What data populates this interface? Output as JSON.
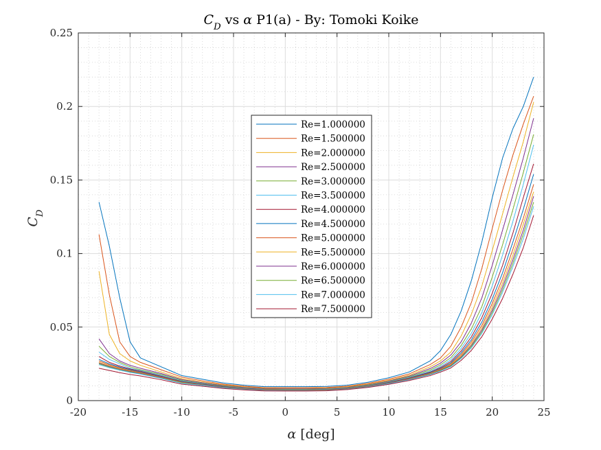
{
  "chart_data": {
    "type": "line",
    "title": "C_D vs α P1(a) - By: Tomoki Koike",
    "xlabel": "α [deg]",
    "ylabel": "C_D",
    "xlim": [
      -20,
      25
    ],
    "ylim": [
      0,
      0.25
    ],
    "xticks": [
      "-20",
      "-15",
      "-10",
      "-5",
      "0",
      "5",
      "10",
      "15",
      "20",
      "25"
    ],
    "yticks": [
      "0",
      "0.05",
      "0.1",
      "0.15",
      "0.2",
      "0.25"
    ],
    "grid": true,
    "minor_grid": true,
    "legend_position": "center",
    "series": [
      {
        "name": "Re=1.000000",
        "color": "#0072BD",
        "x": [
          -18,
          -17,
          -16,
          -15,
          -14,
          -12,
          -10,
          -8,
          -6,
          -4,
          -2,
          0,
          2,
          4,
          6,
          8,
          10,
          12,
          14,
          15,
          16,
          17,
          18,
          19,
          20,
          21,
          22,
          23,
          24
        ],
        "values": [
          0.135,
          0.105,
          0.07,
          0.04,
          0.029,
          0.023,
          0.017,
          0.0145,
          0.012,
          0.0105,
          0.0095,
          0.0095,
          0.0095,
          0.0097,
          0.0105,
          0.0125,
          0.0155,
          0.0195,
          0.027,
          0.034,
          0.045,
          0.061,
          0.082,
          0.108,
          0.138,
          0.165,
          0.185,
          0.2,
          0.22
        ]
      },
      {
        "name": "Re=1.500000",
        "color": "#D95319",
        "x": [
          -18,
          -17,
          -16,
          -15,
          -14,
          -12,
          -10,
          -8,
          -6,
          -4,
          -2,
          0,
          2,
          4,
          6,
          8,
          10,
          12,
          14,
          15,
          16,
          17,
          18,
          19,
          20,
          21,
          22,
          23,
          24
        ],
        "values": [
          0.113,
          0.072,
          0.04,
          0.03,
          0.026,
          0.021,
          0.016,
          0.0135,
          0.0112,
          0.0098,
          0.0088,
          0.0088,
          0.0088,
          0.009,
          0.0098,
          0.0117,
          0.0145,
          0.0182,
          0.0245,
          0.029,
          0.037,
          0.05,
          0.067,
          0.09,
          0.117,
          0.143,
          0.167,
          0.188,
          0.207
        ]
      },
      {
        "name": "Re=2.000000",
        "color": "#EDB120",
        "x": [
          -18,
          -17,
          -16,
          -15,
          -14,
          -12,
          -10,
          -8,
          -6,
          -4,
          -2,
          0,
          2,
          4,
          6,
          8,
          10,
          12,
          14,
          15,
          16,
          17,
          18,
          19,
          20,
          21,
          22,
          23,
          24
        ],
        "values": [
          0.088,
          0.045,
          0.032,
          0.027,
          0.024,
          0.0195,
          0.015,
          0.0128,
          0.0107,
          0.0093,
          0.0084,
          0.0083,
          0.0083,
          0.0085,
          0.0094,
          0.0112,
          0.0138,
          0.0173,
          0.023,
          0.027,
          0.033,
          0.044,
          0.059,
          0.078,
          0.102,
          0.127,
          0.152,
          0.176,
          0.203
        ]
      },
      {
        "name": "Re=2.500000",
        "color": "#7E2F8E",
        "x": [
          -18,
          -17,
          -16,
          -15,
          -14,
          -12,
          -10,
          -8,
          -6,
          -4,
          -2,
          0,
          2,
          4,
          6,
          8,
          10,
          12,
          14,
          15,
          16,
          17,
          18,
          19,
          20,
          21,
          22,
          23,
          24
        ],
        "values": [
          0.042,
          0.032,
          0.027,
          0.024,
          0.022,
          0.0185,
          0.0143,
          0.0122,
          0.0103,
          0.009,
          0.0081,
          0.008,
          0.008,
          0.0082,
          0.009,
          0.0108,
          0.0133,
          0.0167,
          0.0218,
          0.0255,
          0.031,
          0.04,
          0.053,
          0.07,
          0.092,
          0.116,
          0.14,
          0.165,
          0.192
        ]
      },
      {
        "name": "Re=3.000000",
        "color": "#77AC30",
        "x": [
          -18,
          -17,
          -16,
          -15,
          -14,
          -12,
          -10,
          -8,
          -6,
          -4,
          -2,
          0,
          2,
          4,
          6,
          8,
          10,
          12,
          14,
          15,
          16,
          17,
          18,
          19,
          20,
          21,
          22,
          23,
          24
        ],
        "values": [
          0.037,
          0.03,
          0.026,
          0.023,
          0.021,
          0.0178,
          0.0138,
          0.0118,
          0.01,
          0.0087,
          0.0078,
          0.0077,
          0.0077,
          0.0079,
          0.0087,
          0.0105,
          0.0129,
          0.0162,
          0.0208,
          0.0243,
          0.0292,
          0.0375,
          0.049,
          0.064,
          0.084,
          0.106,
          0.13,
          0.155,
          0.181
        ]
      },
      {
        "name": "Re=3.500000",
        "color": "#4DBEEE",
        "x": [
          -18,
          -17,
          -16,
          -15,
          -14,
          -12,
          -10,
          -8,
          -6,
          -4,
          -2,
          0,
          2,
          4,
          6,
          8,
          10,
          12,
          14,
          15,
          16,
          17,
          18,
          19,
          20,
          21,
          22,
          23,
          24
        ],
        "values": [
          0.033,
          0.028,
          0.025,
          0.022,
          0.0205,
          0.0172,
          0.0134,
          0.0115,
          0.0097,
          0.0085,
          0.0076,
          0.0075,
          0.0075,
          0.0077,
          0.0085,
          0.0102,
          0.0126,
          0.0158,
          0.02,
          0.0233,
          0.0278,
          0.0355,
          0.046,
          0.06,
          0.078,
          0.099,
          0.122,
          0.147,
          0.174
        ]
      },
      {
        "name": "Re=4.000000",
        "color": "#A2142F",
        "x": [
          -18,
          -17,
          -16,
          -15,
          -14,
          -12,
          -10,
          -8,
          -6,
          -4,
          -2,
          0,
          2,
          4,
          6,
          8,
          10,
          12,
          14,
          15,
          16,
          17,
          18,
          19,
          20,
          21,
          22,
          23,
          24
        ],
        "values": [
          0.03,
          0.026,
          0.0235,
          0.0215,
          0.02,
          0.0167,
          0.013,
          0.0112,
          0.0095,
          0.0083,
          0.0074,
          0.0073,
          0.0073,
          0.0075,
          0.0083,
          0.01,
          0.0123,
          0.0154,
          0.0194,
          0.0225,
          0.0266,
          0.0338,
          0.0435,
          0.0565,
          0.073,
          0.092,
          0.114,
          0.138,
          0.161
        ]
      },
      {
        "name": "Re=4.500000",
        "color": "#0072BD",
        "x": [
          -18,
          -17,
          -16,
          -15,
          -14,
          -12,
          -10,
          -8,
          -6,
          -4,
          -2,
          0,
          2,
          4,
          6,
          8,
          10,
          12,
          14,
          15,
          16,
          17,
          18,
          19,
          20,
          21,
          22,
          23,
          24
        ],
        "values": [
          0.028,
          0.025,
          0.0228,
          0.021,
          0.0195,
          0.0163,
          0.0127,
          0.011,
          0.0093,
          0.0081,
          0.0073,
          0.0072,
          0.0072,
          0.0074,
          0.0082,
          0.0098,
          0.0121,
          0.0151,
          0.019,
          0.0219,
          0.0257,
          0.0325,
          0.0415,
          0.0535,
          0.069,
          0.087,
          0.108,
          0.13,
          0.154
        ]
      },
      {
        "name": "Re=5.000000",
        "color": "#D95319",
        "x": [
          -18,
          -17,
          -16,
          -15,
          -14,
          -12,
          -10,
          -8,
          -6,
          -4,
          -2,
          0,
          2,
          4,
          6,
          8,
          10,
          12,
          14,
          15,
          16,
          17,
          18,
          19,
          20,
          21,
          22,
          23,
          24
        ],
        "values": [
          0.027,
          0.0243,
          0.0222,
          0.0205,
          0.0191,
          0.016,
          0.0125,
          0.0108,
          0.0091,
          0.008,
          0.0072,
          0.0071,
          0.0071,
          0.0073,
          0.0081,
          0.0097,
          0.0119,
          0.0149,
          0.0186,
          0.0214,
          0.025,
          0.0314,
          0.04,
          0.0512,
          0.066,
          0.083,
          0.103,
          0.124,
          0.147
        ]
      },
      {
        "name": "Re=5.500000",
        "color": "#EDB120",
        "x": [
          -18,
          -17,
          -16,
          -15,
          -14,
          -12,
          -10,
          -8,
          -6,
          -4,
          -2,
          0,
          2,
          4,
          6,
          8,
          10,
          12,
          14,
          15,
          16,
          17,
          18,
          19,
          20,
          21,
          22,
          23,
          24
        ],
        "values": [
          0.026,
          0.0237,
          0.0217,
          0.0201,
          0.0188,
          0.0157,
          0.0123,
          0.0106,
          0.009,
          0.0079,
          0.0071,
          0.007,
          0.007,
          0.0072,
          0.008,
          0.0096,
          0.0118,
          0.0147,
          0.0183,
          0.021,
          0.0244,
          0.0305,
          0.0387,
          0.0494,
          0.0635,
          0.08,
          0.099,
          0.12,
          0.142
        ]
      },
      {
        "name": "Re=6.000000",
        "color": "#7E2F8E",
        "x": [
          -18,
          -17,
          -16,
          -15,
          -14,
          -12,
          -10,
          -8,
          -6,
          -4,
          -2,
          0,
          2,
          4,
          6,
          8,
          10,
          12,
          14,
          15,
          16,
          17,
          18,
          19,
          20,
          21,
          22,
          23,
          24
        ],
        "values": [
          0.0255,
          0.0232,
          0.0213,
          0.0198,
          0.0185,
          0.0155,
          0.0121,
          0.0105,
          0.0089,
          0.0078,
          0.007,
          0.0069,
          0.0069,
          0.0071,
          0.0079,
          0.0095,
          0.0117,
          0.0145,
          0.018,
          0.0207,
          0.0239,
          0.0298,
          0.0377,
          0.048,
          0.0615,
          0.0775,
          0.096,
          0.116,
          0.139
        ]
      },
      {
        "name": "Re=6.500000",
        "color": "#77AC30",
        "x": [
          -18,
          -17,
          -16,
          -15,
          -14,
          -12,
          -10,
          -8,
          -6,
          -4,
          -2,
          0,
          2,
          4,
          6,
          8,
          10,
          12,
          14,
          15,
          16,
          17,
          18,
          19,
          20,
          21,
          22,
          23,
          24
        ],
        "values": [
          0.025,
          0.0228,
          0.021,
          0.0195,
          0.0182,
          0.0153,
          0.012,
          0.0104,
          0.0088,
          0.0077,
          0.0069,
          0.0068,
          0.0068,
          0.007,
          0.0078,
          0.0094,
          0.0116,
          0.0143,
          0.0178,
          0.0204,
          0.0235,
          0.0292,
          0.0368,
          0.0468,
          0.06,
          0.0755,
          0.0935,
          0.113,
          0.135
        ]
      },
      {
        "name": "Re=7.000000",
        "color": "#4DBEEE",
        "x": [
          -18,
          -17,
          -16,
          -15,
          -14,
          -12,
          -10,
          -8,
          -6,
          -4,
          -2,
          0,
          2,
          4,
          6,
          8,
          10,
          12,
          14,
          15,
          16,
          17,
          18,
          19,
          20,
          21,
          22,
          23,
          24
        ],
        "values": [
          0.0245,
          0.0224,
          0.0207,
          0.0192,
          0.018,
          0.0151,
          0.0118,
          0.0103,
          0.0087,
          0.0076,
          0.0068,
          0.0067,
          0.0067,
          0.0069,
          0.0077,
          0.0093,
          0.0115,
          0.0142,
          0.0176,
          0.0201,
          0.0231,
          0.0287,
          0.036,
          0.0458,
          0.0585,
          0.0737,
          0.0912,
          0.11,
          0.132
        ]
      },
      {
        "name": "Re=7.500000",
        "color": "#A2142F",
        "x": [
          -18,
          -17,
          -16,
          -15,
          -14,
          -12,
          -10,
          -8,
          -6,
          -4,
          -2,
          0,
          2,
          4,
          6,
          8,
          10,
          12,
          14,
          15,
          16,
          17,
          18,
          19,
          20,
          21,
          22,
          23,
          24
        ],
        "values": [
          0.022,
          0.0205,
          0.019,
          0.0178,
          0.0168,
          0.0142,
          0.0112,
          0.0098,
          0.0083,
          0.0073,
          0.0066,
          0.0065,
          0.0065,
          0.0067,
          0.0075,
          0.009,
          0.0111,
          0.0137,
          0.017,
          0.0194,
          0.0222,
          0.0274,
          0.0343,
          0.0435,
          0.0555,
          0.0695,
          0.086,
          0.104,
          0.126
        ]
      }
    ]
  }
}
